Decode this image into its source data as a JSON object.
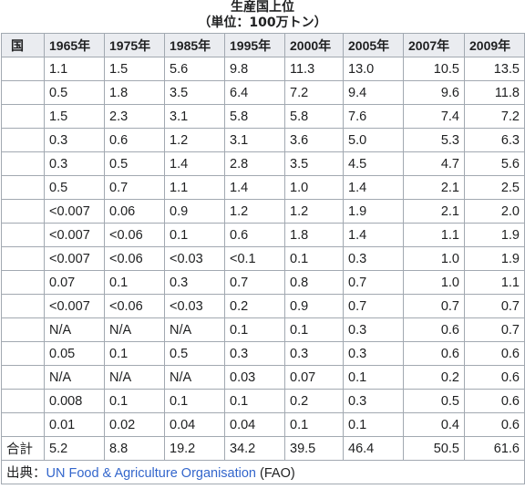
{
  "caption": {
    "line1": "生産国上位",
    "line2": "（単位：100万トン）"
  },
  "headers": [
    "国",
    "1965年",
    "1975年",
    "1985年",
    "1995年",
    "2000年",
    "2005年",
    "2007年",
    "2009年"
  ],
  "rows": [
    [
      "",
      "1.1",
      "1.5",
      "5.6",
      "9.8",
      "11.3",
      "13.0",
      "10.5",
      "13.5"
    ],
    [
      "",
      "0.5",
      "1.8",
      "3.5",
      "6.4",
      "7.2",
      "9.4",
      "9.6",
      "11.8"
    ],
    [
      "",
      "1.5",
      "2.3",
      "3.1",
      "5.8",
      "5.8",
      "7.6",
      "7.4",
      "7.2"
    ],
    [
      "",
      "0.3",
      "0.6",
      "1.2",
      "3.1",
      "3.6",
      "5.0",
      "5.3",
      "6.3"
    ],
    [
      "",
      "0.3",
      "0.5",
      "1.4",
      "2.8",
      "3.5",
      "4.5",
      "4.7",
      "5.6"
    ],
    [
      "",
      "0.5",
      "0.7",
      "1.1",
      "1.4",
      "1.0",
      "1.4",
      "2.1",
      "2.5"
    ],
    [
      "",
      "<0.007",
      "0.06",
      "0.9",
      "1.2",
      "1.2",
      "1.9",
      "2.1",
      "2.0"
    ],
    [
      "",
      "<0.007",
      "<0.06",
      "0.1",
      "0.6",
      "1.8",
      "1.4",
      "1.1",
      "1.9"
    ],
    [
      "",
      "<0.007",
      "<0.06",
      "<0.03",
      "<0.1",
      "0.1",
      "0.3",
      "1.0",
      "1.9"
    ],
    [
      "",
      "0.07",
      "0.1",
      "0.3",
      "0.7",
      "0.8",
      "0.7",
      "1.0",
      "1.1"
    ],
    [
      "",
      "<0.007",
      "<0.06",
      "<0.03",
      "0.2",
      "0.9",
      "0.7",
      "0.7",
      "0.7"
    ],
    [
      "",
      "N/A",
      "N/A",
      "N/A",
      "0.1",
      "0.1",
      "0.3",
      "0.6",
      "0.7"
    ],
    [
      "",
      "0.05",
      "0.1",
      "0.5",
      "0.3",
      "0.3",
      "0.3",
      "0.6",
      "0.6"
    ],
    [
      "",
      "N/A",
      "N/A",
      "N/A",
      "0.03",
      "0.07",
      "0.1",
      "0.2",
      "0.6"
    ],
    [
      "",
      "0.008",
      "0.1",
      "0.1",
      "0.1",
      "0.2",
      "0.3",
      "0.5",
      "0.6"
    ],
    [
      "",
      "0.01",
      "0.02",
      "0.04",
      "0.04",
      "0.1",
      "0.1",
      "0.4",
      "0.6"
    ]
  ],
  "total": [
    "合計",
    "5.2",
    "8.8",
    "19.2",
    "34.2",
    "39.5",
    "46.4",
    "50.5",
    "61.6"
  ],
  "source": {
    "prefix": "出典：",
    "link_text": "UN Food & Agriculture Organisation",
    "suffix": " (FAO)"
  },
  "colors": {
    "header_bg": "#eaecf0",
    "border": "#a2a9b1",
    "link": "#3366cc",
    "text": "#202122"
  }
}
